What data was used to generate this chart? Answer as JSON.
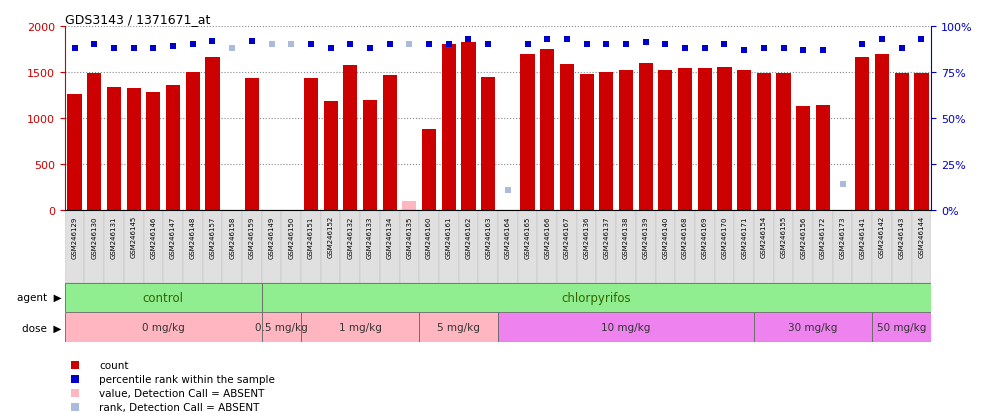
{
  "title": "GDS3143 / 1371671_at",
  "samples": [
    "GSM246129",
    "GSM246130",
    "GSM246131",
    "GSM246145",
    "GSM246146",
    "GSM246147",
    "GSM246148",
    "GSM246157",
    "GSM246158",
    "GSM246159",
    "GSM246149",
    "GSM246150",
    "GSM246151",
    "GSM246152",
    "GSM246132",
    "GSM246133",
    "GSM246134",
    "GSM246135",
    "GSM246160",
    "GSM246161",
    "GSM246162",
    "GSM246163",
    "GSM246164",
    "GSM246165",
    "GSM246166",
    "GSM246167",
    "GSM246136",
    "GSM246137",
    "GSM246138",
    "GSM246139",
    "GSM246140",
    "GSM246168",
    "GSM246169",
    "GSM246170",
    "GSM246171",
    "GSM246154",
    "GSM246155",
    "GSM246156",
    "GSM246172",
    "GSM246173",
    "GSM246141",
    "GSM246142",
    "GSM246143",
    "GSM246144"
  ],
  "counts": [
    1260,
    1490,
    1340,
    1330,
    1280,
    1360,
    1500,
    1660,
    5,
    1430,
    5,
    5,
    1430,
    1190,
    1580,
    1200,
    1470,
    100,
    880,
    1800,
    1820,
    1440,
    5,
    1690,
    1750,
    1590,
    1480,
    1500,
    1520,
    1600,
    1520,
    1540,
    1540,
    1550,
    1520,
    1490,
    1490,
    1130,
    1140,
    5,
    1660,
    1690,
    1490,
    1490
  ],
  "ranks": [
    88,
    90,
    88,
    88,
    88,
    89,
    90,
    92,
    88,
    92,
    90,
    90,
    90,
    88,
    90,
    88,
    90,
    90,
    90,
    90,
    93,
    90,
    11,
    90,
    93,
    93,
    90,
    90,
    90,
    91,
    90,
    88,
    88,
    90,
    87,
    88,
    88,
    87,
    87,
    14,
    90,
    93,
    88,
    93
  ],
  "absent_bar_set": [
    8,
    10,
    11,
    17,
    22,
    39
  ],
  "absent_rank_set": [
    8,
    10,
    11,
    17,
    22,
    39
  ],
  "agent_groups": [
    {
      "label": "control",
      "start": 0,
      "end": 10
    },
    {
      "label": "chlorpyrifos",
      "start": 10,
      "end": 44
    }
  ],
  "dose_groups": [
    {
      "label": "0 mg/kg",
      "start": 0,
      "end": 10,
      "pink": true
    },
    {
      "label": "0.5 mg/kg",
      "start": 10,
      "end": 12,
      "pink": true
    },
    {
      "label": "1 mg/kg",
      "start": 12,
      "end": 18,
      "pink": true
    },
    {
      "label": "5 mg/kg",
      "start": 18,
      "end": 22,
      "pink": true
    },
    {
      "label": "10 mg/kg",
      "start": 22,
      "end": 35,
      "pink": false
    },
    {
      "label": "30 mg/kg",
      "start": 35,
      "end": 41,
      "pink": false
    },
    {
      "label": "50 mg/kg",
      "start": 41,
      "end": 44,
      "pink": false
    }
  ],
  "bar_color": "#CC0000",
  "rank_color": "#0000CC",
  "absent_bar_color": "#FFB6C1",
  "absent_rank_color": "#AABBDD",
  "agent_color": "#90EE90",
  "dose_pink": "#FFB6C1",
  "dose_violet": "#EE82EE",
  "ylim_left": [
    0,
    2000
  ],
  "ylim_right": [
    0,
    100
  ],
  "yticks_left": [
    0,
    500,
    1000,
    1500,
    2000
  ],
  "yticks_right": [
    0,
    25,
    50,
    75,
    100
  ]
}
